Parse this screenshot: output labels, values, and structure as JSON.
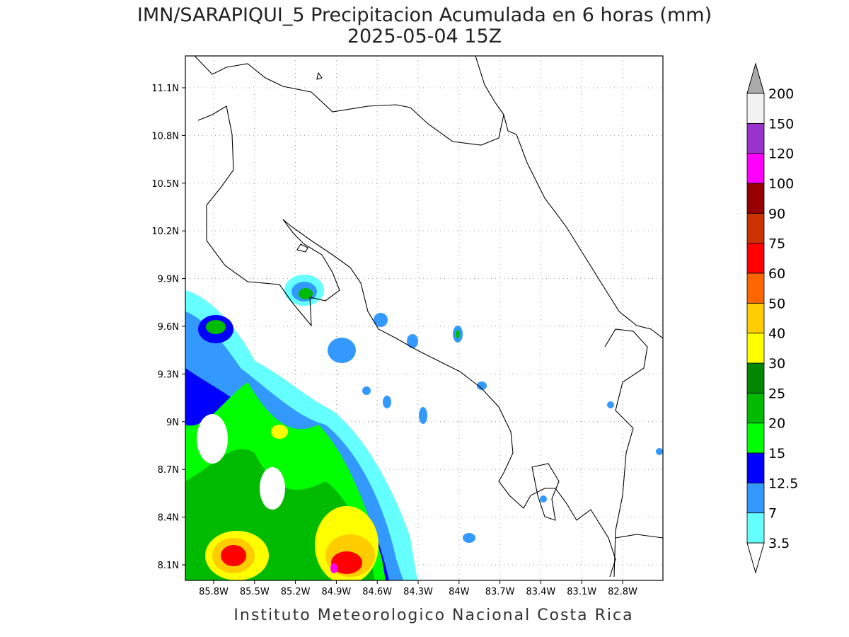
{
  "title": "IMN/SARAPIQUI_5 Precipitacion Acumulada en 6 horas (mm)",
  "subtitle": "2025-05-04 15Z",
  "y_tick_labels": [
    "11.1N",
    "10.8N",
    "10.5N",
    "10.2N",
    "9.9N",
    "9.6N",
    "9.3N",
    "9N",
    "8.7N",
    "8.4N",
    "8.1N"
  ],
  "x_tick_labels": [
    "85.8W",
    "85.5W",
    "85.2W",
    "84.9W",
    "84.6W",
    "84.3W",
    "84W",
    "83.7W",
    "83.4W",
    "83.1W",
    "82.8W"
  ],
  "colorbar": {
    "labels": [
      "3.5",
      "7",
      "12.5",
      "15",
      "20",
      "25",
      "30",
      "40",
      "50",
      "60",
      "75",
      "90",
      "100",
      "120",
      "150",
      "200"
    ],
    "colors": [
      "#66ffff",
      "#3399ff",
      "#0000ff",
      "#00ff00",
      "#00bb00",
      "#008800",
      "#ffff00",
      "#ffcc00",
      "#ff6600",
      "#ff0000",
      "#cc3300",
      "#990000",
      "#ff00ff",
      "#9933cc",
      "#f2f2f2"
    ],
    "under_color": "#ffffff",
    "over_color": "#aaaaaa"
  },
  "footer": "Instituto Meteorologico Nacional Costa Rica"
}
